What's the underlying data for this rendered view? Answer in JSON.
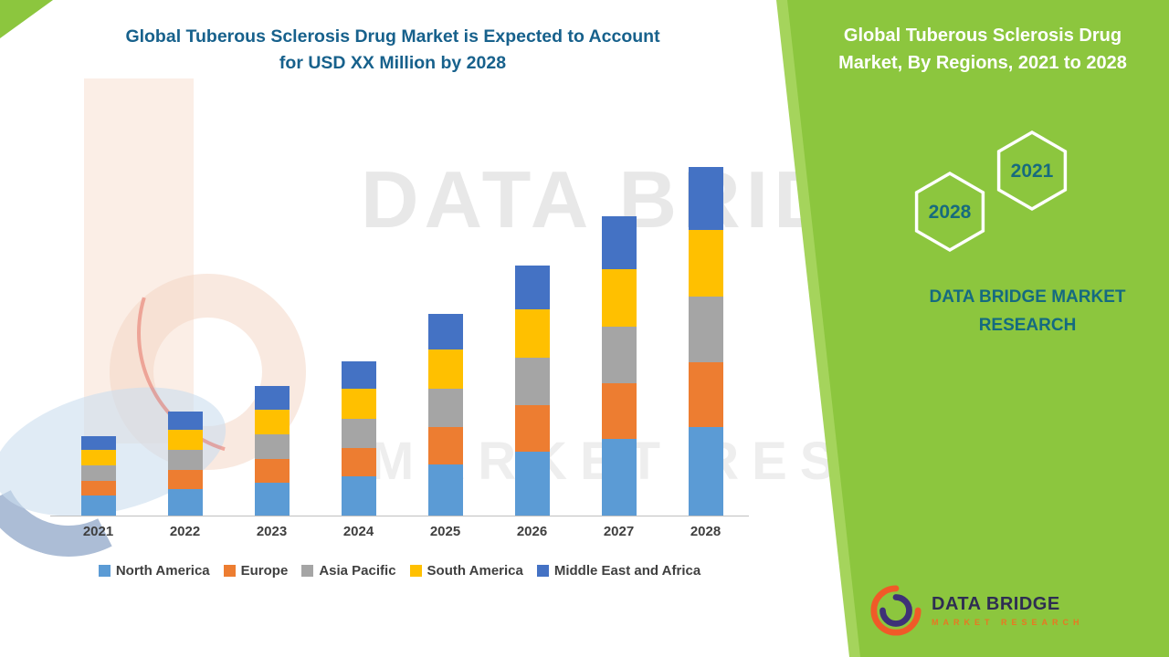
{
  "title": {
    "line1": "Global Tuberous Sclerosis Drug Market is Expected to Account",
    "line2": "for USD XX Million by 2028"
  },
  "watermark": {
    "line1": "DATA BRIDGE",
    "line2": "MARKET RESEARCH"
  },
  "panel": {
    "title_line1": "Global Tuberous Sclerosis Drug",
    "title_line2": "Market, By Regions, 2021 to 2028",
    "hex_2028": "2028",
    "hex_2021": "2021",
    "brand_line1": "DATA BRIDGE MARKET",
    "brand_line2": "RESEARCH",
    "logo_text": "DATA BRIDGE",
    "logo_subtext": "MARKET RESEARCH"
  },
  "chart_data": {
    "type": "bar",
    "stacked": true,
    "title": "Global Tuberous Sclerosis Drug Market is Expected to Account for USD XX Million by 2028",
    "xlabel": "",
    "ylabel": "",
    "value_axis_visible": false,
    "legend_position": "bottom",
    "categories": [
      "2021",
      "2022",
      "2023",
      "2024",
      "2025",
      "2026",
      "2027",
      "2028"
    ],
    "series": [
      {
        "name": "North America",
        "color": "#5B9BD5",
        "values": [
          22,
          29,
          36,
          43,
          56,
          70,
          84,
          97
        ]
      },
      {
        "name": "Europe",
        "color": "#ED7D31",
        "values": [
          16,
          21,
          26,
          31,
          41,
          51,
          61,
          71
        ]
      },
      {
        "name": "Asia Pacific",
        "color": "#A5A5A5",
        "values": [
          17,
          22,
          27,
          32,
          42,
          52,
          62,
          72
        ]
      },
      {
        "name": "South America",
        "color": "#FFC000",
        "values": [
          17,
          22,
          27,
          33,
          43,
          53,
          63,
          73
        ]
      },
      {
        "name": "Middle East and Africa",
        "color": "#4472C4",
        "values": [
          15,
          20,
          26,
          30,
          39,
          48,
          58,
          69
        ]
      }
    ],
    "totals": [
      87,
      114,
      142,
      169,
      221,
      274,
      328,
      382
    ]
  }
}
